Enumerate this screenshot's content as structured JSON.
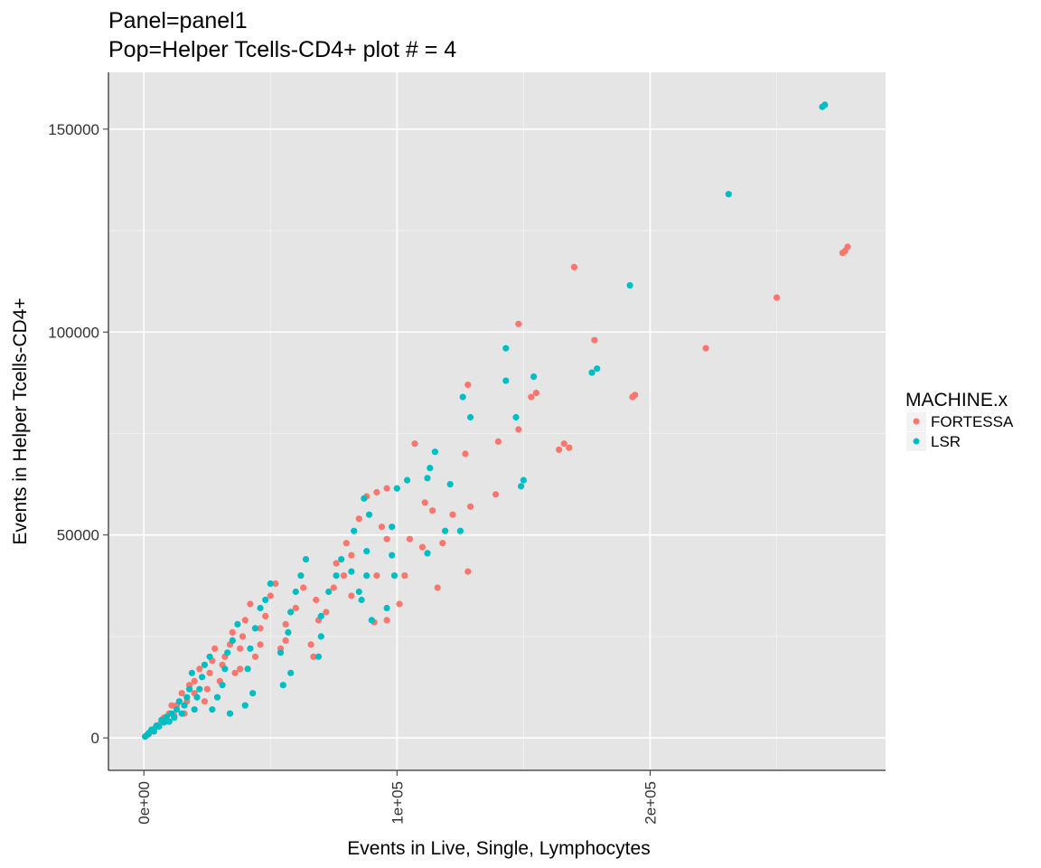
{
  "chart_data": {
    "type": "scatter",
    "title_lines": [
      "Panel=panel1",
      "Pop=Helper Tcells-CD4+ plot # = 4"
    ],
    "xlabel": "Events in Live, Single, Lymphocytes",
    "ylabel": "Events in Helper Tcells-CD4+",
    "xlim": [
      -14000,
      293000
    ],
    "ylim": [
      -8000,
      164000
    ],
    "x_ticks": [
      {
        "value": 0,
        "label": "0e+00"
      },
      {
        "value": 100000,
        "label": "1e+05"
      },
      {
        "value": 200000,
        "label": "2e+05"
      }
    ],
    "y_ticks": [
      {
        "value": 0,
        "label": "0"
      },
      {
        "value": 50000,
        "label": "50000"
      },
      {
        "value": 100000,
        "label": "100000"
      },
      {
        "value": 150000,
        "label": "150000"
      }
    ],
    "grid": true,
    "background": "#e5e5e5",
    "legend": {
      "title": "MACHINE.x",
      "placement": "right",
      "entries": [
        "FORTESSA",
        "LSR"
      ]
    },
    "series": [
      {
        "name": "FORTESSA",
        "color": "#f8766d",
        "points": [
          [
            278000,
            121000
          ],
          [
            277000,
            120000
          ],
          [
            276000,
            119500
          ],
          [
            250000,
            108500
          ],
          [
            222000,
            96000
          ],
          [
            194000,
            84500
          ],
          [
            193000,
            84000
          ],
          [
            170000,
            116000
          ],
          [
            178000,
            98000
          ],
          [
            166000,
            72500
          ],
          [
            168000,
            71500
          ],
          [
            164000,
            71000
          ],
          [
            148000,
            102000
          ],
          [
            155000,
            85000
          ],
          [
            153000,
            84000
          ],
          [
            148000,
            76000
          ],
          [
            140000,
            73000
          ],
          [
            139000,
            60000
          ],
          [
            128000,
            87000
          ],
          [
            127000,
            70000
          ],
          [
            129000,
            57000
          ],
          [
            128000,
            41000
          ],
          [
            122000,
            55000
          ],
          [
            116000,
            37000
          ],
          [
            107000,
            72500
          ],
          [
            111000,
            58000
          ],
          [
            114000,
            56000
          ],
          [
            118000,
            48000
          ],
          [
            105000,
            49000
          ],
          [
            110000,
            47000
          ],
          [
            96000,
            61500
          ],
          [
            92000,
            60500
          ],
          [
            94000,
            52000
          ],
          [
            88000,
            59500
          ],
          [
            85000,
            54000
          ],
          [
            82000,
            45000
          ],
          [
            96000,
            49000
          ],
          [
            92000,
            40000
          ],
          [
            103000,
            40000
          ],
          [
            101000,
            33000
          ],
          [
            96000,
            29000
          ],
          [
            91000,
            28500
          ],
          [
            80000,
            48000
          ],
          [
            76000,
            43000
          ],
          [
            79000,
            40000
          ],
          [
            82000,
            35000
          ],
          [
            75000,
            37000
          ],
          [
            72000,
            31000
          ],
          [
            68000,
            34000
          ],
          [
            69000,
            29000
          ],
          [
            66000,
            23000
          ],
          [
            67000,
            20000
          ],
          [
            63000,
            37000
          ],
          [
            60000,
            32000
          ],
          [
            58000,
            31000
          ],
          [
            56000,
            28000
          ],
          [
            56000,
            24000
          ],
          [
            54000,
            22000
          ],
          [
            52000,
            38000
          ],
          [
            50000,
            35000
          ],
          [
            48000,
            30000
          ],
          [
            46000,
            27000
          ],
          [
            46000,
            23000
          ],
          [
            44000,
            20000
          ],
          [
            42000,
            33000
          ],
          [
            40000,
            29000
          ],
          [
            39000,
            25000
          ],
          [
            38000,
            22000
          ],
          [
            38000,
            17000
          ],
          [
            36000,
            16000
          ],
          [
            35000,
            26000
          ],
          [
            34000,
            23000
          ],
          [
            32000,
            20000
          ],
          [
            31000,
            18000
          ],
          [
            30000,
            14000
          ],
          [
            28000,
            22000
          ],
          [
            27000,
            19000
          ],
          [
            26000,
            16000
          ],
          [
            25000,
            12000
          ],
          [
            24000,
            9000
          ],
          [
            22000,
            17000
          ],
          [
            20000,
            14000
          ],
          [
            20000,
            11000
          ],
          [
            18000,
            13000
          ],
          [
            17000,
            9000
          ],
          [
            16000,
            6000
          ],
          [
            15000,
            11000
          ],
          [
            13000,
            8000
          ],
          [
            12000,
            5500
          ],
          [
            11000,
            8000
          ],
          [
            10000,
            6000
          ],
          [
            9000,
            4500
          ],
          [
            8000,
            5000
          ],
          [
            7000,
            4000
          ],
          [
            6000,
            3200
          ],
          [
            5000,
            2800
          ],
          [
            4000,
            2200
          ],
          [
            3000,
            1800
          ],
          [
            2000,
            1000
          ],
          [
            1000,
            600
          ]
        ]
      },
      {
        "name": "LSR",
        "color": "#00bfc4",
        "points": [
          [
            269000,
            156000
          ],
          [
            268000,
            155500
          ],
          [
            231000,
            134000
          ],
          [
            192000,
            111500
          ],
          [
            179000,
            91000
          ],
          [
            177000,
            90000
          ],
          [
            154000,
            89000
          ],
          [
            143000,
            96000
          ],
          [
            143000,
            88000
          ],
          [
            147000,
            79000
          ],
          [
            150000,
            63500
          ],
          [
            149000,
            62000
          ],
          [
            129000,
            79000
          ],
          [
            126000,
            84000
          ],
          [
            121000,
            62500
          ],
          [
            125000,
            51000
          ],
          [
            119000,
            51000
          ],
          [
            112000,
            45500
          ],
          [
            115000,
            70500
          ],
          [
            113000,
            66500
          ],
          [
            112000,
            64000
          ],
          [
            104000,
            63500
          ],
          [
            100000,
            61500
          ],
          [
            98000,
            52000
          ],
          [
            89000,
            55000
          ],
          [
            87000,
            59000
          ],
          [
            83000,
            51000
          ],
          [
            88000,
            46000
          ],
          [
            88000,
            40000
          ],
          [
            85000,
            36000
          ],
          [
            98000,
            45000
          ],
          [
            99000,
            40000
          ],
          [
            90000,
            29000
          ],
          [
            96000,
            32000
          ],
          [
            82000,
            41000
          ],
          [
            86000,
            34000
          ],
          [
            78000,
            44000
          ],
          [
            76000,
            40000
          ],
          [
            73000,
            36000
          ],
          [
            70000,
            30000
          ],
          [
            70000,
            25000
          ],
          [
            69000,
            20000
          ],
          [
            64000,
            44000
          ],
          [
            62000,
            40000
          ],
          [
            60000,
            36000
          ],
          [
            58000,
            31000
          ],
          [
            57000,
            26000
          ],
          [
            54000,
            21000
          ],
          [
            58000,
            16000
          ],
          [
            55000,
            13000
          ],
          [
            50000,
            38000
          ],
          [
            48000,
            34000
          ],
          [
            46000,
            32000
          ],
          [
            44000,
            27000
          ],
          [
            42000,
            22000
          ],
          [
            41000,
            17000
          ],
          [
            43000,
            11000
          ],
          [
            40000,
            8000
          ],
          [
            37000,
            28000
          ],
          [
            35000,
            24000
          ],
          [
            33000,
            21000
          ],
          [
            32000,
            17000
          ],
          [
            31000,
            13000
          ],
          [
            29000,
            10000
          ],
          [
            34000,
            6000
          ],
          [
            27000,
            7000
          ],
          [
            26000,
            20000
          ],
          [
            24000,
            18000
          ],
          [
            23000,
            15000
          ],
          [
            22000,
            12000
          ],
          [
            21000,
            10000
          ],
          [
            20000,
            7000
          ],
          [
            19000,
            16000
          ],
          [
            18000,
            12000
          ],
          [
            17000,
            10000
          ],
          [
            16000,
            8000
          ],
          [
            15000,
            6000
          ],
          [
            14000,
            9000
          ],
          [
            13000,
            7000
          ],
          [
            12000,
            5000
          ],
          [
            11000,
            6000
          ],
          [
            10000,
            4000
          ],
          [
            9000,
            5200
          ],
          [
            8000,
            3800
          ],
          [
            7000,
            4400
          ],
          [
            6000,
            2800
          ],
          [
            5000,
            3000
          ],
          [
            4000,
            1600
          ],
          [
            3000,
            2000
          ],
          [
            2000,
            1200
          ],
          [
            1500,
            800
          ],
          [
            500,
            300
          ]
        ]
      }
    ]
  }
}
